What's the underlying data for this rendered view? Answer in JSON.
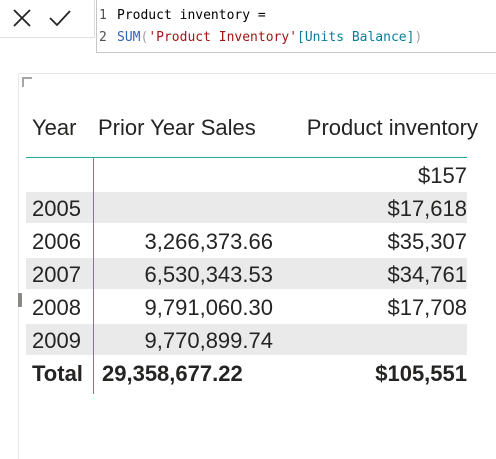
{
  "formula_bar": {
    "line1_number": "1",
    "line1_text": "Product inventory =",
    "line2_number": "2",
    "line2_func": "SUM",
    "line2_open": "(",
    "line2_table": "'Product Inventory'",
    "line2_column": "[Units Balance]",
    "line2_close": ")"
  },
  "table": {
    "headers": {
      "year": "Year",
      "prior_year_sales": "Prior Year Sales",
      "product_inventory": "Product inventory"
    },
    "rows": [
      {
        "year": "",
        "prior_year_sales": "",
        "product_inventory": "$157"
      },
      {
        "year": "2005",
        "prior_year_sales": "",
        "product_inventory": "$17,618"
      },
      {
        "year": "2006",
        "prior_year_sales": "3,266,373.66",
        "product_inventory": "$35,307"
      },
      {
        "year": "2007",
        "prior_year_sales": "6,530,343.53",
        "product_inventory": "$34,761"
      },
      {
        "year": "2008",
        "prior_year_sales": "9,791,060.30",
        "product_inventory": "$17,708"
      },
      {
        "year": "2009",
        "prior_year_sales": "9,770,899.74",
        "product_inventory": ""
      }
    ],
    "total": {
      "label": "Total",
      "prior_year_sales": "29,358,677.22",
      "product_inventory": "$105,551"
    }
  },
  "colors": {
    "accent": "#1aab96",
    "band": "#eaeaea",
    "func": "#3165bb",
    "table_name": "#a31515",
    "column_name": "#097e96"
  },
  "icons": {
    "cancel": "close-icon",
    "commit": "checkmark-icon"
  }
}
